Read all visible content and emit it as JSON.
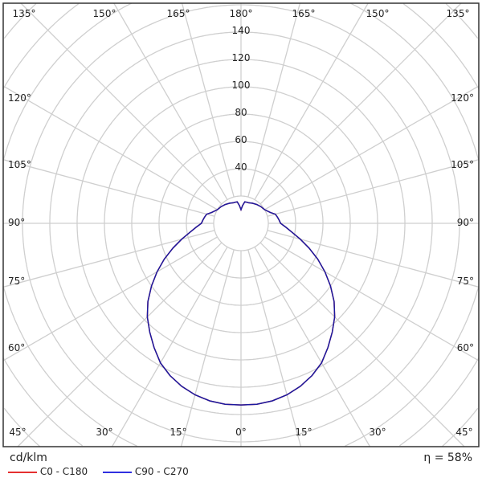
{
  "chart_data": {
    "type": "polar",
    "unit_label": "cd/klm",
    "efficiency_label": "η = 58%",
    "radial_ticks": [
      40,
      60,
      80,
      100,
      120,
      140
    ],
    "radial_step": 20,
    "angle_step_deg": 15,
    "top_labels": [
      "135°",
      "150°",
      "165°",
      "180°",
      "165°",
      "150°",
      "135°"
    ],
    "side_labels": [
      "120°",
      "105°",
      "90°",
      "75°",
      "60°"
    ],
    "bottom_labels": [
      "45°",
      "30°",
      "15°",
      "0°",
      "15°",
      "30°",
      "45°"
    ],
    "grid": true,
    "legend_placement": "bottom-left",
    "angles_deg": [
      0,
      5,
      10,
      15,
      20,
      25,
      30,
      35,
      40,
      45,
      50,
      55,
      60,
      65,
      70,
      75,
      80,
      85,
      90,
      95,
      100,
      105,
      110,
      120,
      130,
      140,
      150,
      160,
      165,
      170,
      175,
      180
    ],
    "series": [
      {
        "name": "C0 - C180",
        "color": "#e53030",
        "values": [
          133,
          133,
          132,
          130,
          127,
          123,
          118,
          111,
          104,
          97,
          89,
          80,
          71,
          62,
          53,
          45,
          38,
          33,
          29,
          28,
          27,
          26,
          23,
          20,
          19,
          18,
          17,
          16,
          16,
          16,
          13,
          10
        ]
      },
      {
        "name": "C90 - C270",
        "color": "#1a1aa0",
        "values": [
          133,
          133,
          132,
          130,
          127,
          123,
          118,
          111,
          104,
          97,
          89,
          80,
          71,
          62,
          53,
          45,
          38,
          33,
          29,
          28,
          27,
          26,
          23,
          20,
          19,
          18,
          17,
          16,
          16,
          16,
          13,
          10
        ]
      }
    ]
  }
}
